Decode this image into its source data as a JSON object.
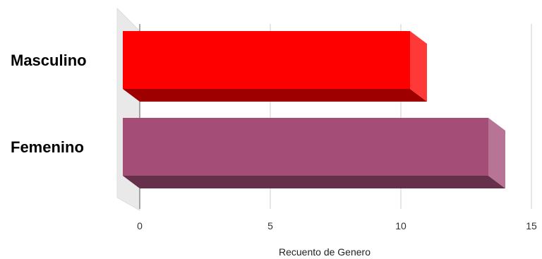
{
  "chart_data": {
    "type": "bar",
    "orientation": "horizontal",
    "style": "3d",
    "categories": [
      "Masculino",
      "Femenino"
    ],
    "values": [
      11,
      14
    ],
    "colors": [
      "#ff0000",
      "#a44d77"
    ],
    "xlabel": "Recuento de Genero",
    "ylabel": "",
    "xlim": [
      0,
      15
    ],
    "xticks": [
      0,
      5,
      10,
      15
    ],
    "grid": true,
    "legend": "none"
  }
}
